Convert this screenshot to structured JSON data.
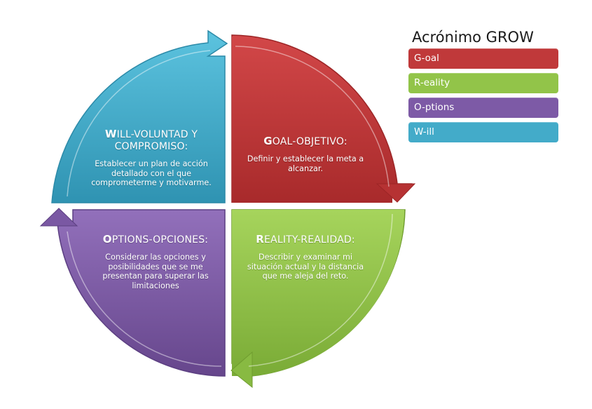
{
  "colors": {
    "goal": "#c0393a",
    "reality": "#92c449",
    "options": "#7d5aa6",
    "will": "#43abc9"
  },
  "quadrants": {
    "will": {
      "title_initial": "W",
      "title_rest": "ILL-VOLUNTAD Y COMPROMISO:",
      "description": "Establecer un plan de acción detallado con el que comprometerme y motivarme."
    },
    "goal": {
      "title_initial": "G",
      "title_rest": "OAL-OBJETIVO:",
      "description": "Definir y establecer la meta a alcanzar."
    },
    "reality": {
      "title_initial": "R",
      "title_rest": "EALITY-REALIDAD:",
      "description": "Describir y examinar mi situación actual y la distancia que me aleja del reto."
    },
    "options": {
      "title_initial": "O",
      "title_rest": "PTIONS-OPCIONES:",
      "description": "Considerar las opciones y posibilidades que se me presentan para superar las limitaciones"
    }
  },
  "legend": {
    "title": "Acrónimo GROW",
    "items": [
      {
        "key": "goal",
        "label": "G-oal"
      },
      {
        "key": "reality",
        "label": "R-eality"
      },
      {
        "key": "options",
        "label": "O-ptions"
      },
      {
        "key": "will",
        "label": "W-ill"
      }
    ]
  }
}
